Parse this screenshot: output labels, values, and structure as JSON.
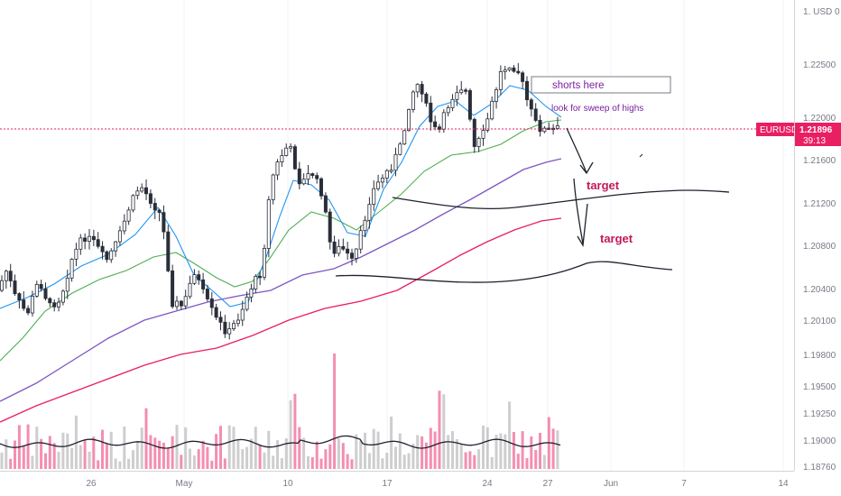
{
  "chart_data": {
    "type": "candlestick",
    "symbol": "EURUSD",
    "last_price": "1.21896",
    "countdown": "39:13",
    "price_axis_header": "1. USD 0",
    "ylim": [
      1.1862,
      1.2295
    ],
    "price_ticks": [
      "1.22500",
      "1.22000",
      "1.21600",
      "1.21200",
      "1.20800",
      "1.20400",
      "1.20100",
      "1.19800",
      "1.19500",
      "1.19250",
      "1.19000",
      "1.18760"
    ],
    "time_ticks": [
      "26",
      "May",
      "10",
      "17",
      "24",
      "27",
      "Jun",
      "7",
      "14"
    ],
    "annotations": {
      "shorts_label": "shorts here",
      "sweep_label": "look for sweep of highs",
      "target_1": "target",
      "target_2": "target"
    },
    "colors": {
      "up": "#9e9e9e",
      "down": "#e91e63",
      "candle_up_body": "#ffffff",
      "candle_outline": "#2a2e39",
      "ma_fast": "#2196f3",
      "ma_mid": "#4caf50",
      "ma_slow": "#7e57c2",
      "ma_long": "#e91e63",
      "price_line": "#e91e63"
    }
  }
}
